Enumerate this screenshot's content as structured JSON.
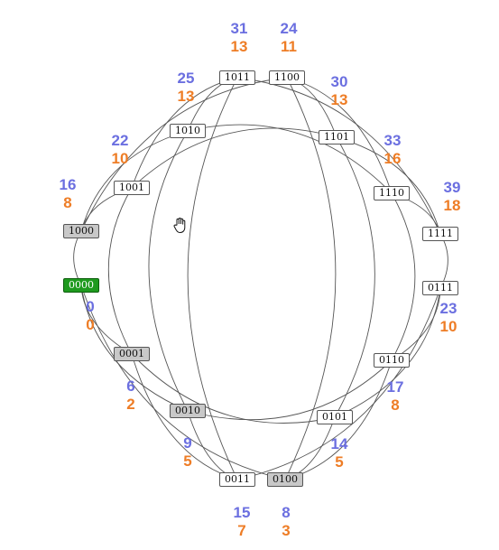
{
  "colors": {
    "first_value": "#6b6fe0",
    "second_value": "#ee7d26",
    "current_node": "#1e9a1e",
    "visited_node": "#c8c8c8"
  },
  "cursor": "hand-pointer-icon",
  "nodes": {
    "n0000": {
      "label": "0000",
      "state": "current",
      "value_top": "0",
      "value_bottom": "0"
    },
    "n0001": {
      "label": "0001",
      "state": "visited",
      "value_top": "6",
      "value_bottom": "2"
    },
    "n0010": {
      "label": "0010",
      "state": "visited",
      "value_top": "9",
      "value_bottom": "5"
    },
    "n0011": {
      "label": "0011",
      "state": "unvisited",
      "value_top": "15",
      "value_bottom": "7"
    },
    "n0100": {
      "label": "0100",
      "state": "visited",
      "value_top": "8",
      "value_bottom": "3"
    },
    "n0101": {
      "label": "0101",
      "state": "unvisited",
      "value_top": "14",
      "value_bottom": "5"
    },
    "n0110": {
      "label": "0110",
      "state": "unvisited",
      "value_top": "17",
      "value_bottom": "8"
    },
    "n0111": {
      "label": "0111",
      "state": "unvisited",
      "value_top": "23",
      "value_bottom": "10"
    },
    "n1000": {
      "label": "1000",
      "state": "visited",
      "value_top": "16",
      "value_bottom": "8"
    },
    "n1001": {
      "label": "1001",
      "state": "unvisited",
      "value_top": "22",
      "value_bottom": "10"
    },
    "n1010": {
      "label": "1010",
      "state": "unvisited",
      "value_top": "25",
      "value_bottom": "13"
    },
    "n1011": {
      "label": "1011",
      "state": "unvisited",
      "value_top": "31",
      "value_bottom": "13"
    },
    "n1100": {
      "label": "1100",
      "state": "unvisited",
      "value_top": "24",
      "value_bottom": "11"
    },
    "n1101": {
      "label": "1101",
      "state": "unvisited",
      "value_top": "30",
      "value_bottom": "13"
    },
    "n1110": {
      "label": "1110",
      "state": "unvisited",
      "value_top": "33",
      "value_bottom": "16"
    },
    "n1111": {
      "label": "1111",
      "state": "unvisited",
      "value_top": "39",
      "value_bottom": "18"
    }
  }
}
